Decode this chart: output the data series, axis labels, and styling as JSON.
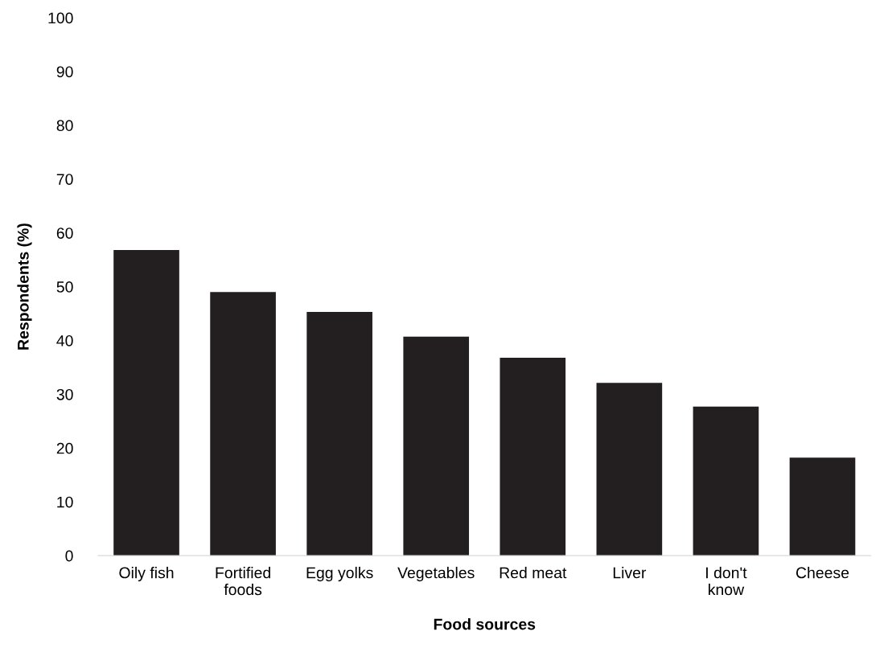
{
  "chart_data": {
    "type": "bar",
    "xlabel": "Food sources",
    "ylabel": "Respondents (%)",
    "categories": [
      "Oily fish",
      "Fortified\nfoods",
      "Egg yolks",
      "Vegetables",
      "Red meat",
      "Liver",
      "I don't\nknow",
      "Cheese"
    ],
    "values": [
      56.8,
      49.0,
      45.3,
      40.7,
      36.8,
      32.1,
      27.7,
      18.2
    ],
    "color": "#231f20",
    "ylim": [
      0,
      100
    ],
    "yticks": [
      0,
      10,
      20,
      30,
      40,
      50,
      60,
      70,
      80,
      90,
      100
    ],
    "grid": false,
    "legend": false
  }
}
